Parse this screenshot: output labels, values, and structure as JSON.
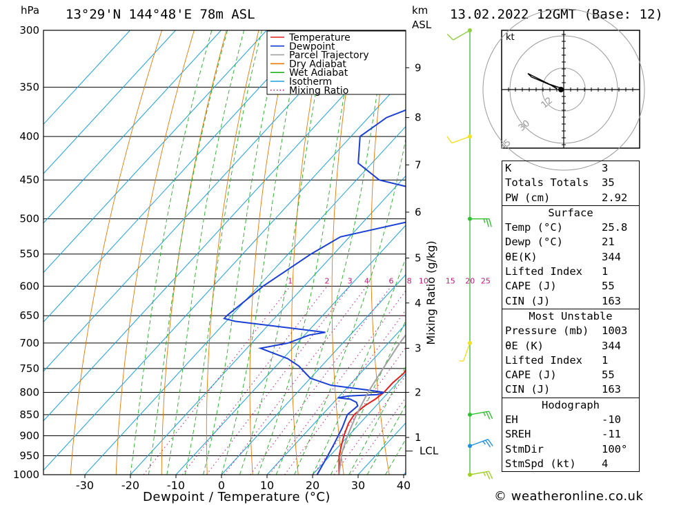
{
  "header": {
    "location": "13°29'N  144°48'E  78m  ASL",
    "datetime": "13.02.2022  12GMT  (Base: 12)",
    "left_unit": "hPa",
    "right_unit_1": "km",
    "right_unit_2": "ASL"
  },
  "footer": {
    "copyright": "© weatheronline.co.uk"
  },
  "legend": [
    {
      "label": "Temperature",
      "color": "#e02020"
    },
    {
      "label": "Dewpoint",
      "color": "#1a3fd6"
    },
    {
      "label": "Parcel Trajectory",
      "color": "#a0a0a0"
    },
    {
      "label": "Dry Adiabat",
      "color": "#e87800"
    },
    {
      "label": "Wet Adiabat",
      "color": "#1fb01f"
    },
    {
      "label": "Isotherm",
      "color": "#18a0e0"
    },
    {
      "label": "Mixing Ratio",
      "color": "#c0187a"
    }
  ],
  "hodograph": {
    "unit": "kt",
    "rings": [
      "12",
      "30",
      "45"
    ]
  },
  "indices": {
    "rows": [
      {
        "label": "K",
        "value": "3"
      },
      {
        "label": "Totals Totals",
        "value": "35"
      },
      {
        "label": "PW (cm)",
        "value": "2.92"
      }
    ],
    "surface": {
      "title": "Surface",
      "rows": [
        {
          "label": "Temp (°C)",
          "value": "25.8"
        },
        {
          "label": "Dewp (°C)",
          "value": "21"
        },
        {
          "label": "θE(K)",
          "value": "344"
        },
        {
          "label": "Lifted Index",
          "value": "1"
        },
        {
          "label": "CAPE (J)",
          "value": "55"
        },
        {
          "label": "CIN (J)",
          "value": "163"
        }
      ]
    },
    "most_unstable": {
      "title": "Most Unstable",
      "rows": [
        {
          "label": "Pressure (mb)",
          "value": "1003"
        },
        {
          "label": "θE (K)",
          "value": "344"
        },
        {
          "label": "Lifted Index",
          "value": "1"
        },
        {
          "label": "CAPE (J)",
          "value": "55"
        },
        {
          "label": "CIN (J)",
          "value": "163"
        }
      ]
    },
    "hodo": {
      "title": "Hodograph",
      "rows": [
        {
          "label": "EH",
          "value": "-10"
        },
        {
          "label": "SREH",
          "value": "-11"
        },
        {
          "label": "StmDir",
          "value": "100°"
        },
        {
          "label": "StmSpd (kt)",
          "value": "4"
        }
      ]
    }
  },
  "chart_data": {
    "type": "line",
    "title": "",
    "xlabel": "Dewpoint / Temperature (°C)",
    "ylabel": "",
    "right_axis_label": "Mixing Ratio (g/kg)",
    "xlim": [
      -40,
      40
    ],
    "ylim_pressure": [
      1000,
      300
    ],
    "y_log_scale": true,
    "x_ticks": [
      "-30",
      "-20",
      "-10",
      "0",
      "10",
      "20",
      "30",
      "40"
    ],
    "pressure_ticks": [
      "300",
      "350",
      "400",
      "450",
      "500",
      "550",
      "600",
      "650",
      "700",
      "750",
      "800",
      "850",
      "900",
      "950",
      "1000"
    ],
    "height_ticks_km": [
      {
        "label": "1",
        "p": 904
      },
      {
        "label": "2",
        "p": 800
      },
      {
        "label": "3",
        "p": 710
      },
      {
        "label": "4",
        "p": 628
      },
      {
        "label": "5",
        "p": 556
      },
      {
        "label": "6",
        "p": 491
      },
      {
        "label": "7",
        "p": 432
      },
      {
        "label": "8",
        "p": 380
      },
      {
        "label": "9",
        "p": 332
      }
    ],
    "lcl_label": "LCL",
    "lcl_pressure": 938,
    "mixing_ratio_labels": [
      "1",
      "2",
      "3",
      "4",
      "6",
      "8",
      "10",
      "15",
      "20",
      "25"
    ],
    "mixing_ratio_values": [
      1,
      2,
      3,
      4,
      6,
      8,
      10,
      15,
      20,
      25
    ],
    "series": [
      {
        "name": "Temperature",
        "p": [
          1000,
          950,
          925,
          900,
          870,
          850,
          830,
          815,
          800,
          780,
          760,
          745,
          720,
          700,
          680,
          660,
          640,
          620,
          600,
          580,
          560,
          540,
          520,
          500,
          490,
          470,
          460,
          450,
          440,
          430,
          420,
          400,
          380,
          360
        ],
        "t": [
          25.8,
          22.0,
          20.5,
          19.0,
          17.5,
          17.0,
          17.5,
          18.5,
          19.0,
          19.0,
          19.5,
          19.0,
          18.5,
          17.0,
          16.0,
          17.0,
          16.0,
          14.5,
          13.0,
          11.0,
          9.0,
          6.5,
          4.0,
          1.5,
          -1.0,
          -4.0,
          -3.5,
          -3.5,
          -5.0,
          -6.0,
          -8.0,
          -12.0,
          -16.0,
          -20.0
        ]
      },
      {
        "name": "Dewpoint",
        "p": [
          1000,
          950,
          920,
          880,
          850,
          830,
          822,
          815,
          812,
          808,
          805,
          800,
          795,
          785,
          775,
          770,
          760,
          745,
          730,
          710,
          700,
          685,
          680,
          660,
          655,
          650,
          600,
          550,
          525,
          500,
          490,
          470,
          460,
          450,
          430,
          400,
          380,
          350,
          340,
          330,
          310,
          300
        ],
        "t": [
          21.0,
          19.5,
          18.5,
          17.0,
          15.5,
          16.0,
          15.0,
          13.0,
          10.0,
          12.0,
          18.0,
          19.0,
          15.0,
          6.0,
          2.0,
          0.0,
          -2.0,
          -5.0,
          -9.0,
          -17.0,
          -12.0,
          -9.0,
          -6.0,
          -28.0,
          -31.0,
          -31.0,
          -29.0,
          -25.0,
          -22.0,
          -8.0,
          -9.0,
          -9.0,
          -16.0,
          -25.0,
          -33.0,
          -38.0,
          -36.0,
          -25.0,
          -18.0,
          -13.0,
          -10.0,
          -12.0
        ]
      },
      {
        "name": "Parcel Trajectory",
        "p": [
          1000,
          950,
          938,
          900,
          850,
          800,
          750,
          700,
          650,
          600,
          550,
          500,
          450,
          400,
          370
        ],
        "t": [
          25.8,
          22.5,
          21.8,
          19.8,
          17.5,
          15.5,
          14.0,
          12.5,
          11.5,
          10.0,
          8.0,
          5.0,
          0.5,
          -7.0,
          -12.0
        ]
      }
    ],
    "hodograph_trace_kt": [
      {
        "u": 0.0,
        "v": 0.0
      },
      {
        "u": -2.0,
        "v": -1.0
      },
      {
        "u": -8.0,
        "v": -3.0
      },
      {
        "u": -4.0,
        "v": -0.5
      },
      {
        "u": -5.0,
        "v": -1.5
      },
      {
        "u": -20.0,
        "v": -9.0
      },
      {
        "u": -18.0,
        "v": -7.0
      },
      {
        "u": -6.0,
        "v": -2.0
      }
    ],
    "wind_barbs": [
      {
        "p": 300,
        "speed_kt": 10,
        "dir_deg": 240,
        "color": "#8fd040"
      },
      {
        "p": 400,
        "speed_kt": 10,
        "dir_deg": 250,
        "color": "#f0e020"
      },
      {
        "p": 500,
        "speed_kt": 25,
        "dir_deg": 90,
        "color": "#30c030"
      },
      {
        "p": 700,
        "speed_kt": 5,
        "dir_deg": 200,
        "color": "#f0e020"
      },
      {
        "p": 850,
        "speed_kt": 25,
        "dir_deg": 80,
        "color": "#30c030"
      },
      {
        "p": 925,
        "speed_kt": 25,
        "dir_deg": 70,
        "color": "#1e90e0"
      },
      {
        "p": 1000,
        "speed_kt": 25,
        "dir_deg": 80,
        "color": "#a0d020"
      }
    ]
  }
}
